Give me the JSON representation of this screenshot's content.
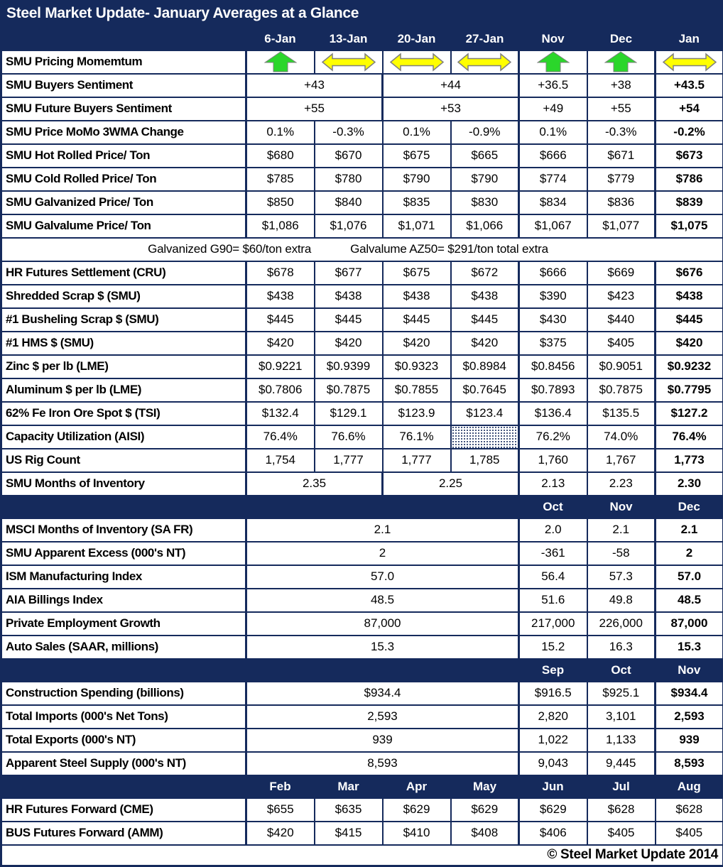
{
  "title": "Steel Market Update- January Averages at a Glance",
  "footer": "© Steel Market Update 2014",
  "colors": {
    "navy": "#152A5C",
    "arrow_green": "#2BD62B",
    "arrow_yellow": "#FFFF00",
    "arrow_outline": "#7F7F7F"
  },
  "rows": [
    {
      "kind": "band",
      "lead": 1,
      "labels": [
        "6-Jan",
        "13-Jan",
        "20-Jan",
        "27-Jan",
        "Nov",
        "Dec",
        "Jan"
      ]
    },
    {
      "kind": "data",
      "label": "SMU Pricing Momemtum",
      "cells": [
        {
          "icon": "up"
        },
        {
          "icon": "flat"
        },
        {
          "icon": "flat"
        },
        {
          "icon": "flat"
        },
        {
          "icon": "up"
        },
        {
          "icon": "up"
        },
        {
          "icon": "flat"
        }
      ]
    },
    {
      "kind": "data",
      "label": "SMU Buyers Sentiment",
      "cells": [
        {
          "t": "+43",
          "span": 2
        },
        {
          "t": "+44",
          "span": 2
        },
        {
          "t": "+36.5"
        },
        {
          "t": "+38"
        },
        {
          "t": "+43.5",
          "b": true
        }
      ]
    },
    {
      "kind": "data",
      "label": "SMU Future Buyers Sentiment",
      "cells": [
        {
          "t": "+55",
          "span": 2
        },
        {
          "t": "+53",
          "span": 2
        },
        {
          "t": "+49"
        },
        {
          "t": "+55"
        },
        {
          "t": "+54",
          "b": true
        }
      ]
    },
    {
      "kind": "data",
      "label": "SMU Price MoMo 3WMA Change",
      "cells": [
        {
          "t": "0.1%"
        },
        {
          "t": "-0.3%"
        },
        {
          "t": "0.1%"
        },
        {
          "t": "-0.9%"
        },
        {
          "t": "0.1%"
        },
        {
          "t": "-0.3%"
        },
        {
          "t": "-0.2%",
          "b": true
        }
      ]
    },
    {
      "kind": "data",
      "label": "SMU Hot Rolled Price/ Ton",
      "cells": [
        {
          "t": "$680"
        },
        {
          "t": "$670"
        },
        {
          "t": "$675"
        },
        {
          "t": "$665"
        },
        {
          "t": "$666"
        },
        {
          "t": "$671"
        },
        {
          "t": "$673",
          "b": true
        }
      ]
    },
    {
      "kind": "data",
      "label": "SMU Cold Rolled Price/ Ton",
      "cells": [
        {
          "t": "$785"
        },
        {
          "t": "$780"
        },
        {
          "t": "$790"
        },
        {
          "t": "$790"
        },
        {
          "t": "$774"
        },
        {
          "t": "$779"
        },
        {
          "t": "$786",
          "b": true
        }
      ]
    },
    {
      "kind": "data",
      "label": "SMU Galvanized Price/ Ton",
      "cells": [
        {
          "t": "$850"
        },
        {
          "t": "$840"
        },
        {
          "t": "$835"
        },
        {
          "t": "$830"
        },
        {
          "t": "$834"
        },
        {
          "t": "$836"
        },
        {
          "t": "$839",
          "b": true
        }
      ]
    },
    {
      "kind": "data",
      "label": "SMU Galvalume Price/ Ton",
      "cells": [
        {
          "t": "$1,086"
        },
        {
          "t": "$1,076"
        },
        {
          "t": "$1,071"
        },
        {
          "t": "$1,066"
        },
        {
          "t": "$1,067"
        },
        {
          "t": "$1,077"
        },
        {
          "t": "$1,075",
          "b": true
        }
      ]
    },
    {
      "kind": "note",
      "parts": [
        "Galvanized G90= $60/ton extra",
        "Galvalume AZ50= $291/ton total extra"
      ]
    },
    {
      "kind": "data",
      "label": "HR Futures Settlement (CRU)",
      "cells": [
        {
          "t": "$678"
        },
        {
          "t": "$677"
        },
        {
          "t": "$675"
        },
        {
          "t": "$672"
        },
        {
          "t": "$666"
        },
        {
          "t": "$669"
        },
        {
          "t": "$676",
          "b": true
        }
      ]
    },
    {
      "kind": "data",
      "label": "Shredded Scrap $ (SMU)",
      "cells": [
        {
          "t": "$438"
        },
        {
          "t": "$438"
        },
        {
          "t": "$438"
        },
        {
          "t": "$438"
        },
        {
          "t": "$390"
        },
        {
          "t": "$423"
        },
        {
          "t": "$438",
          "b": true
        }
      ]
    },
    {
      "kind": "data",
      "label": "#1 Busheling Scrap $ (SMU)",
      "cells": [
        {
          "t": "$445"
        },
        {
          "t": "$445"
        },
        {
          "t": "$445"
        },
        {
          "t": "$445"
        },
        {
          "t": "$430"
        },
        {
          "t": "$440"
        },
        {
          "t": "$445",
          "b": true
        }
      ]
    },
    {
      "kind": "data",
      "label": "#1 HMS $ (SMU)",
      "cells": [
        {
          "t": "$420"
        },
        {
          "t": "$420"
        },
        {
          "t": "$420"
        },
        {
          "t": "$420"
        },
        {
          "t": "$375"
        },
        {
          "t": "$405"
        },
        {
          "t": "$420",
          "b": true
        }
      ]
    },
    {
      "kind": "data",
      "label": "Zinc $ per lb (LME)",
      "cells": [
        {
          "t": "$0.9221"
        },
        {
          "t": "$0.9399"
        },
        {
          "t": "$0.9323"
        },
        {
          "t": "$0.8984"
        },
        {
          "t": "$0.8456"
        },
        {
          "t": "$0.9051"
        },
        {
          "t": "$0.9232",
          "b": true
        }
      ]
    },
    {
      "kind": "data",
      "label": "Aluminum $ per lb (LME)",
      "cells": [
        {
          "t": "$0.7806"
        },
        {
          "t": "$0.7875"
        },
        {
          "t": "$0.7855"
        },
        {
          "t": "$0.7645"
        },
        {
          "t": "$0.7893"
        },
        {
          "t": "$0.7875"
        },
        {
          "t": "$0.7795",
          "b": true
        }
      ]
    },
    {
      "kind": "data",
      "label": "62% Fe Iron Ore Spot $ (TSI)",
      "cells": [
        {
          "t": "$132.4"
        },
        {
          "t": "$129.1"
        },
        {
          "t": "$123.9"
        },
        {
          "t": "$123.4"
        },
        {
          "t": "$136.4"
        },
        {
          "t": "$135.5"
        },
        {
          "t": "$127.2",
          "b": true
        }
      ]
    },
    {
      "kind": "data",
      "label": "Capacity Utilization (AISI)",
      "cells": [
        {
          "t": "76.4%"
        },
        {
          "t": "76.6%"
        },
        {
          "t": "76.1%"
        },
        {
          "hatch": true
        },
        {
          "t": "76.2%"
        },
        {
          "t": "74.0%"
        },
        {
          "t": "76.4%",
          "b": true
        }
      ]
    },
    {
      "kind": "data",
      "label": "US Rig Count",
      "cells": [
        {
          "t": "1,754"
        },
        {
          "t": "1,777"
        },
        {
          "t": "1,777"
        },
        {
          "t": "1,785"
        },
        {
          "t": "1,760"
        },
        {
          "t": "1,767"
        },
        {
          "t": "1,773",
          "b": true
        }
      ]
    },
    {
      "kind": "data",
      "label": "SMU Months of Inventory",
      "cells": [
        {
          "t": "2.35",
          "span": 2
        },
        {
          "t": "2.25",
          "span": 2
        },
        {
          "t": "2.13"
        },
        {
          "t": "2.23"
        },
        {
          "t": "2.30",
          "b": true
        }
      ]
    },
    {
      "kind": "band",
      "lead": 5,
      "labels": [
        "Oct",
        "Nov",
        "Dec"
      ]
    },
    {
      "kind": "data",
      "label": "MSCI Months of Inventory (SA FR)",
      "cells": [
        {
          "t": "2.1",
          "span": 4
        },
        {
          "t": "2.0"
        },
        {
          "t": "2.1"
        },
        {
          "t": "2.1",
          "b": true
        }
      ]
    },
    {
      "kind": "data",
      "label": "SMU Apparent Excess (000's NT)",
      "cells": [
        {
          "t": "2",
          "span": 4
        },
        {
          "t": "-361"
        },
        {
          "t": "-58"
        },
        {
          "t": "2",
          "b": true
        }
      ]
    },
    {
      "kind": "data",
      "label": "ISM Manufacturing Index",
      "cells": [
        {
          "t": "57.0",
          "span": 4
        },
        {
          "t": "56.4"
        },
        {
          "t": "57.3"
        },
        {
          "t": "57.0",
          "b": true
        }
      ]
    },
    {
      "kind": "data",
      "label": "AIA Billings Index",
      "cells": [
        {
          "t": "48.5",
          "span": 4
        },
        {
          "t": "51.6"
        },
        {
          "t": "49.8"
        },
        {
          "t": "48.5",
          "b": true
        }
      ]
    },
    {
      "kind": "data",
      "label": "Private Employment Growth",
      "cells": [
        {
          "t": "87,000",
          "span": 4
        },
        {
          "t": "217,000"
        },
        {
          "t": "226,000"
        },
        {
          "t": "87,000",
          "b": true
        }
      ]
    },
    {
      "kind": "data",
      "label": "Auto Sales (SAAR, millions)",
      "cells": [
        {
          "t": "15.3",
          "span": 4
        },
        {
          "t": "15.2"
        },
        {
          "t": "16.3"
        },
        {
          "t": "15.3",
          "b": true
        }
      ]
    },
    {
      "kind": "band",
      "lead": 5,
      "labels": [
        "Sep",
        "Oct",
        "Nov"
      ]
    },
    {
      "kind": "data",
      "label": "Construction Spending (billions)",
      "cells": [
        {
          "t": "$934.4",
          "span": 4
        },
        {
          "t": "$916.5"
        },
        {
          "t": "$925.1"
        },
        {
          "t": "$934.4",
          "b": true
        }
      ]
    },
    {
      "kind": "data",
      "label": "Total Imports (000's Net Tons)",
      "cells": [
        {
          "t": "2,593",
          "span": 4
        },
        {
          "t": "2,820"
        },
        {
          "t": "3,101"
        },
        {
          "t": "2,593",
          "b": true
        }
      ]
    },
    {
      "kind": "data",
      "label": "Total Exports (000's NT)",
      "cells": [
        {
          "t": "939",
          "span": 4
        },
        {
          "t": "1,022"
        },
        {
          "t": "1,133"
        },
        {
          "t": "939",
          "b": true
        }
      ]
    },
    {
      "kind": "data",
      "label": "Apparent Steel Supply (000's NT)",
      "cells": [
        {
          "t": "8,593",
          "span": 4
        },
        {
          "t": "9,043"
        },
        {
          "t": "9,445"
        },
        {
          "t": "8,593",
          "b": true
        }
      ]
    },
    {
      "kind": "band",
      "lead": 1,
      "labels": [
        "Feb",
        "Mar",
        "Apr",
        "May",
        "Jun",
        "Jul",
        "Aug"
      ]
    },
    {
      "kind": "data",
      "fut": true,
      "label": "HR Futures Forward (CME)",
      "cells": [
        {
          "t": "$655"
        },
        {
          "t": "$635"
        },
        {
          "t": "$629"
        },
        {
          "t": "$629"
        },
        {
          "t": "$629"
        },
        {
          "t": "$628"
        },
        {
          "t": "$628"
        }
      ]
    },
    {
      "kind": "data",
      "fut": true,
      "label": "BUS Futures Forward (AMM)",
      "cells": [
        {
          "t": "$420"
        },
        {
          "t": "$415"
        },
        {
          "t": "$410"
        },
        {
          "t": "$408"
        },
        {
          "t": "$406"
        },
        {
          "t": "$405"
        },
        {
          "t": "$405"
        }
      ]
    },
    {
      "kind": "footer"
    }
  ]
}
